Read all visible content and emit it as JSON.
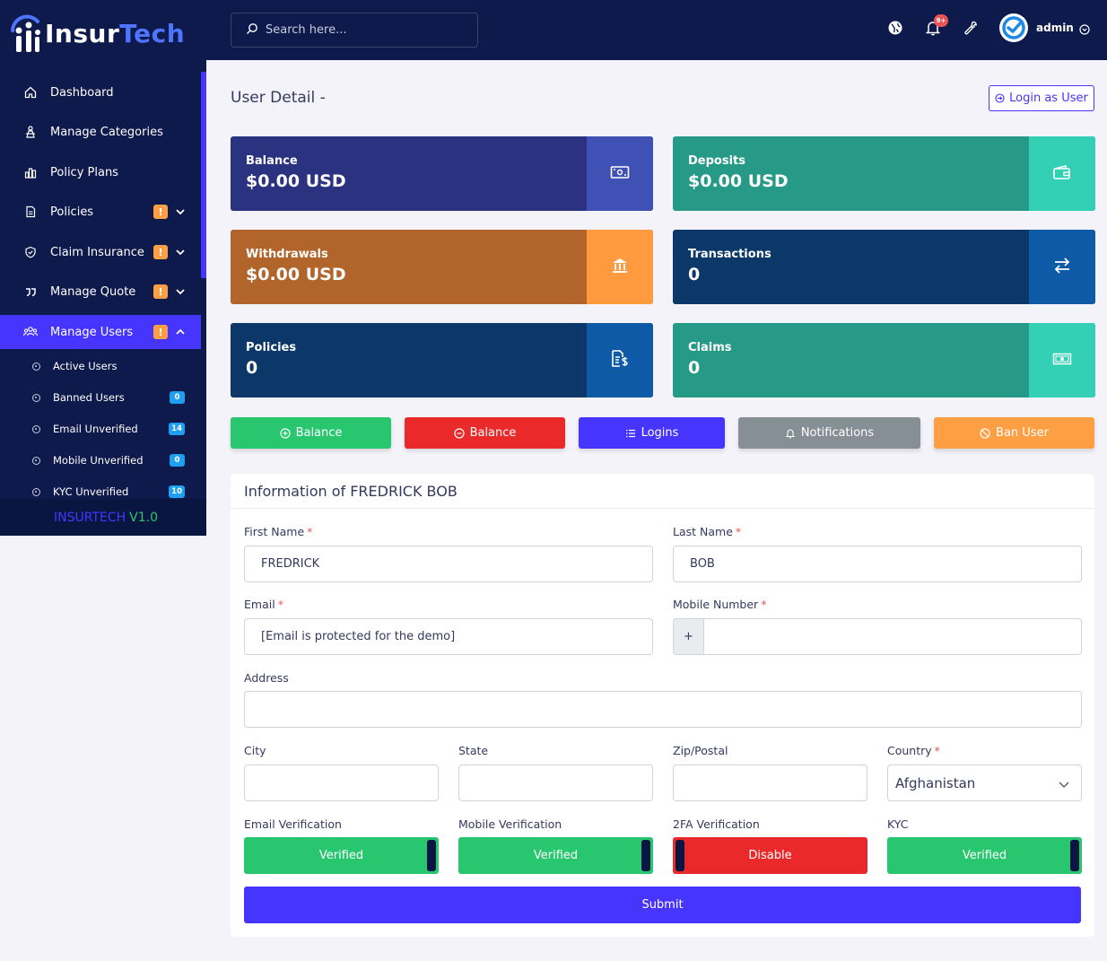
{
  "app": {
    "logo_part1": "Insur",
    "logo_part2": "Tech",
    "version_name": "INSURTECH",
    "version_num": "V1.0"
  },
  "sidebar": {
    "items": [
      {
        "label": "Dashboard",
        "icon": "home-icon"
      },
      {
        "label": "Manage Categories",
        "icon": "categories-icon"
      },
      {
        "label": "Policy Plans",
        "icon": "chart-icon"
      },
      {
        "label": "Policies",
        "icon": "document-icon",
        "badge": "!"
      },
      {
        "label": "Claim Insurance",
        "icon": "shield-icon",
        "badge": "!"
      },
      {
        "label": "Manage Quote",
        "icon": "quote-icon",
        "badge": "!"
      },
      {
        "label": "Manage Users",
        "icon": "users-icon",
        "badge": "!",
        "active": true
      }
    ],
    "subitems": [
      {
        "label": "Active Users"
      },
      {
        "label": "Banned Users",
        "count": "0"
      },
      {
        "label": "Email Unverified",
        "count": "14"
      },
      {
        "label": "Mobile Unverified",
        "count": "0"
      },
      {
        "label": "KYC Unverified",
        "count": "10"
      }
    ]
  },
  "topbar": {
    "search_placeholder": "Search here...",
    "notif_count": "9+",
    "user_name": "admin"
  },
  "page": {
    "title": "User Detail -",
    "login_as_user": "Login as User"
  },
  "widgets": [
    {
      "label": "Balance",
      "value": "$0.00 USD",
      "main": "#2b3280",
      "side": "#3f51b5",
      "icon": "money-icon"
    },
    {
      "label": "Deposits",
      "value": "$0.00 USD",
      "main": "#279a87",
      "side": "#34d0b6",
      "icon": "wallet-icon"
    },
    {
      "label": "Withdrawals",
      "value": "$0.00 USD",
      "main": "#b2652a",
      "side": "#ff9a3e",
      "icon": "bank-icon"
    },
    {
      "label": "Transactions",
      "value": "0",
      "main": "#0b3769",
      "side": "#0f5aa6",
      "icon": "exchange-icon"
    },
    {
      "label": "Policies",
      "value": "0",
      "main": "#0b3769",
      "side": "#0f5aa6",
      "icon": "file-dollar-icon"
    },
    {
      "label": "Claims",
      "value": "0",
      "main": "#279a87",
      "side": "#34d0b6",
      "icon": "cash-icon"
    }
  ],
  "actions": [
    {
      "label": "Balance",
      "color": "#28c76f",
      "icon": "plus-circle-icon"
    },
    {
      "label": "Balance",
      "color": "#ea2a2a",
      "icon": "minus-circle-icon"
    },
    {
      "label": "Logins",
      "color": "#4634ff",
      "icon": "list-icon"
    },
    {
      "label": "Notifications",
      "color": "#868e96",
      "icon": "bell-icon"
    },
    {
      "label": "Ban User",
      "color": "#ff9f43",
      "icon": "ban-icon"
    }
  ],
  "form": {
    "title": "Information of FREDRICK BOB",
    "first_name_label": "First Name",
    "first_name": "FREDRICK",
    "last_name_label": "Last Name",
    "last_name": "BOB",
    "email_label": "Email",
    "email": "[Email is protected for the demo]",
    "mobile_label": "Mobile Number",
    "mobile_prefix": "+",
    "mobile": "",
    "address_label": "Address",
    "address": "",
    "city_label": "City",
    "city": "",
    "state_label": "State",
    "state": "",
    "zip_label": "Zip/Postal",
    "zip": "",
    "country_label": "Country",
    "country": "Afghanistan",
    "required_mark": "*",
    "toggles": [
      {
        "label": "Email Verification",
        "value": "Verified",
        "on": true
      },
      {
        "label": "Mobile Verification",
        "value": "Verified",
        "on": true
      },
      {
        "label": "2FA Verification",
        "value": "Disable",
        "on": false
      },
      {
        "label": "KYC",
        "value": "Verified",
        "on": true
      }
    ],
    "submit": "Submit"
  }
}
